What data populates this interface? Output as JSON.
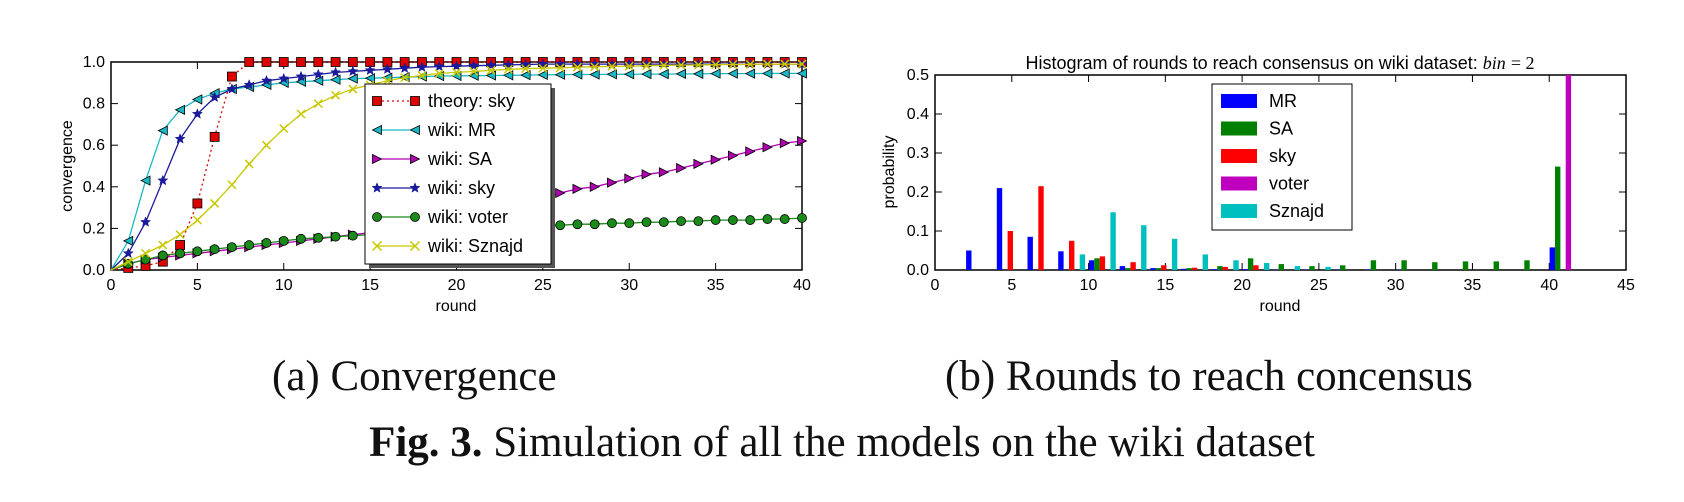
{
  "chart_data": [
    {
      "type": "line",
      "xlabel": "round",
      "ylabel": "convergence",
      "xlim": [
        0,
        40
      ],
      "ylim": [
        0,
        1.0
      ],
      "xticks": [
        "0",
        "5",
        "10",
        "15",
        "20",
        "25",
        "30",
        "35",
        "40"
      ],
      "yticks": [
        "0.0",
        "0.2",
        "0.4",
        "0.6",
        "0.8",
        "1.0"
      ],
      "legend_position": "center",
      "series": [
        {
          "name": "theory: sky",
          "color": "#dd0000",
          "marker": "square",
          "linestyle": "dotted",
          "x": [
            0,
            1,
            2,
            3,
            4,
            5,
            6,
            7,
            8,
            9,
            10,
            11,
            12,
            13,
            14,
            15,
            16,
            17,
            18,
            19,
            20,
            21,
            22,
            23,
            24,
            25,
            26,
            27,
            28,
            29,
            30,
            31,
            32,
            33,
            34,
            35,
            36,
            37,
            38,
            39,
            40
          ],
          "y": [
            0,
            0.01,
            0.02,
            0.04,
            0.12,
            0.32,
            0.64,
            0.93,
            1,
            1,
            1,
            1,
            1,
            1,
            1,
            1,
            1,
            1,
            1,
            1,
            1,
            1,
            1,
            1,
            1,
            1,
            1,
            1,
            1,
            1,
            1,
            1,
            1,
            1,
            1,
            1,
            1,
            1,
            1,
            1,
            1
          ]
        },
        {
          "name": "wiki: MR",
          "color": "#1ab8c4",
          "marker": "triangle-left",
          "linestyle": "solid",
          "x": [
            0,
            1,
            2,
            3,
            4,
            5,
            6,
            7,
            8,
            9,
            10,
            11,
            12,
            13,
            14,
            15,
            16,
            17,
            18,
            19,
            20,
            21,
            22,
            23,
            24,
            25,
            26,
            27,
            28,
            29,
            30,
            31,
            32,
            33,
            34,
            35,
            36,
            37,
            38,
            39,
            40
          ],
          "y": [
            0,
            0.14,
            0.43,
            0.67,
            0.77,
            0.82,
            0.85,
            0.87,
            0.88,
            0.89,
            0.9,
            0.905,
            0.91,
            0.915,
            0.92,
            0.922,
            0.925,
            0.927,
            0.93,
            0.932,
            0.933,
            0.934,
            0.935,
            0.936,
            0.937,
            0.938,
            0.939,
            0.94,
            0.94,
            0.941,
            0.941,
            0.942,
            0.942,
            0.943,
            0.943,
            0.944,
            0.944,
            0.944,
            0.945,
            0.945,
            0.945
          ]
        },
        {
          "name": "wiki: SA",
          "color": "#b000b0",
          "marker": "triangle-right",
          "linestyle": "solid",
          "x": [
            0,
            1,
            2,
            3,
            4,
            5,
            6,
            7,
            8,
            9,
            10,
            11,
            12,
            13,
            14,
            15,
            16,
            17,
            18,
            19,
            20,
            21,
            22,
            23,
            24,
            25,
            26,
            27,
            28,
            29,
            30,
            31,
            32,
            33,
            34,
            35,
            36,
            37,
            38,
            39,
            40
          ],
          "y": [
            0,
            0.03,
            0.05,
            0.06,
            0.07,
            0.08,
            0.09,
            0.1,
            0.11,
            0.12,
            0.13,
            0.14,
            0.15,
            0.16,
            0.17,
            0.18,
            0.19,
            0.2,
            0.22,
            0.24,
            0.26,
            0.28,
            0.3,
            0.32,
            0.33,
            0.35,
            0.37,
            0.39,
            0.4,
            0.42,
            0.44,
            0.46,
            0.47,
            0.49,
            0.51,
            0.53,
            0.55,
            0.57,
            0.59,
            0.61,
            0.62
          ]
        },
        {
          "name": "wiki: sky",
          "color": "#1a1a9a",
          "marker": "star",
          "linestyle": "solid",
          "x": [
            0,
            1,
            2,
            3,
            4,
            5,
            6,
            7,
            8,
            9,
            10,
            11,
            12,
            13,
            14,
            15,
            16,
            17,
            18,
            19,
            20,
            21,
            22,
            23,
            24,
            25,
            26,
            27,
            28,
            29,
            30,
            31,
            32,
            33,
            34,
            35,
            36,
            37,
            38,
            39,
            40
          ],
          "y": [
            0,
            0.08,
            0.23,
            0.43,
            0.63,
            0.75,
            0.83,
            0.87,
            0.89,
            0.91,
            0.92,
            0.93,
            0.94,
            0.95,
            0.955,
            0.96,
            0.965,
            0.97,
            0.975,
            0.978,
            0.98,
            0.982,
            0.984,
            0.986,
            0.988,
            0.99,
            0.99,
            0.99,
            0.99,
            0.99,
            0.99,
            0.99,
            0.99,
            0.99,
            0.99,
            0.99,
            0.99,
            0.99,
            0.99,
            0.99,
            0.99
          ]
        },
        {
          "name": "wiki: voter",
          "color": "#1a8a1a",
          "marker": "circle",
          "linestyle": "solid",
          "x": [
            0,
            1,
            2,
            3,
            4,
            5,
            6,
            7,
            8,
            9,
            10,
            11,
            12,
            13,
            14,
            15,
            16,
            17,
            18,
            19,
            20,
            21,
            22,
            23,
            24,
            25,
            26,
            27,
            28,
            29,
            30,
            31,
            32,
            33,
            34,
            35,
            36,
            37,
            38,
            39,
            40
          ],
          "y": [
            0,
            0.03,
            0.05,
            0.07,
            0.08,
            0.09,
            0.1,
            0.11,
            0.12,
            0.13,
            0.14,
            0.15,
            0.155,
            0.16,
            0.165,
            0.17,
            0.175,
            0.18,
            0.185,
            0.19,
            0.195,
            0.2,
            0.205,
            0.21,
            0.21,
            0.215,
            0.215,
            0.22,
            0.22,
            0.225,
            0.225,
            0.23,
            0.23,
            0.235,
            0.235,
            0.24,
            0.24,
            0.24,
            0.245,
            0.245,
            0.25
          ]
        },
        {
          "name": "wiki: Sznajd",
          "color": "#c8c800",
          "marker": "x",
          "linestyle": "solid",
          "x": [
            0,
            1,
            2,
            3,
            4,
            5,
            6,
            7,
            8,
            9,
            10,
            11,
            12,
            13,
            14,
            15,
            16,
            17,
            18,
            19,
            20,
            21,
            22,
            23,
            24,
            25,
            26,
            27,
            28,
            29,
            30,
            31,
            32,
            33,
            34,
            35,
            36,
            37,
            38,
            39,
            40
          ],
          "y": [
            0,
            0.04,
            0.08,
            0.12,
            0.17,
            0.24,
            0.32,
            0.41,
            0.51,
            0.6,
            0.68,
            0.75,
            0.8,
            0.84,
            0.87,
            0.89,
            0.91,
            0.925,
            0.935,
            0.945,
            0.95,
            0.955,
            0.96,
            0.965,
            0.968,
            0.97,
            0.972,
            0.975,
            0.977,
            0.979,
            0.98,
            0.982,
            0.984,
            0.985,
            0.986,
            0.987,
            0.988,
            0.989,
            0.99,
            0.99,
            0.99
          ]
        }
      ]
    },
    {
      "type": "bar",
      "title": "Histogram of rounds to reach consensus on wiki dataset:",
      "title_math": "bin",
      "title_math_tail": " = 2",
      "xlabel": "round",
      "ylabel": "probability",
      "xlim": [
        0,
        45
      ],
      "ylim": [
        0,
        0.5
      ],
      "xticks": [
        "0",
        "5",
        "10",
        "15",
        "20",
        "25",
        "30",
        "35",
        "40",
        "45"
      ],
      "yticks": [
        "0.0",
        "0.1",
        "0.2",
        "0.3",
        "0.4",
        "0.5"
      ],
      "bar_width": 0.35,
      "legend_position": "upper center",
      "series": [
        {
          "name": "MR",
          "color": "#0000ff",
          "x": [
            2.2,
            4.2,
            6.2,
            8.2,
            10.2,
            12.2,
            14.2,
            16.2,
            18.2,
            20.2,
            22.2,
            24.2,
            26.2,
            28.2,
            30.2,
            40.2
          ],
          "y": [
            0.05,
            0.21,
            0.085,
            0.048,
            0.025,
            0.01,
            0.005,
            0.003,
            0.002,
            0.002,
            0.001,
            0.001,
            0.001,
            0.001,
            0.001,
            0.058
          ]
        },
        {
          "name": "SA",
          "color": "#008000",
          "x": [
            10.55,
            12.55,
            14.55,
            16.55,
            18.55,
            20.55,
            22.55,
            24.55,
            26.55,
            28.55,
            30.55,
            32.55,
            34.55,
            36.55,
            38.55,
            40.55
          ],
          "y": [
            0.03,
            0.005,
            0.005,
            0.005,
            0.01,
            0.03,
            0.015,
            0.01,
            0.012,
            0.025,
            0.025,
            0.02,
            0.022,
            0.022,
            0.025,
            0.265
          ]
        },
        {
          "name": "sky",
          "color": "#ff0000",
          "x": [
            4.9,
            6.9,
            8.9,
            10.9,
            12.9,
            14.9,
            16.9,
            18.9,
            20.9
          ],
          "y": [
            0.1,
            0.215,
            0.075,
            0.035,
            0.02,
            0.012,
            0.006,
            0.008,
            0.012
          ]
        },
        {
          "name": "voter",
          "color": "#bf00bf",
          "x": [
            41.25
          ],
          "y": [
            0.5
          ]
        },
        {
          "name": "Sznajd",
          "color": "#00bfbf",
          "x": [
            9.6,
            11.6,
            13.6,
            15.6,
            17.6,
            19.6,
            21.6,
            23.6,
            25.6
          ],
          "y": [
            0.04,
            0.148,
            0.115,
            0.08,
            0.04,
            0.025,
            0.018,
            0.01,
            0.008
          ]
        }
      ]
    }
  ],
  "captions": {
    "sub_a": "(a) Convergence",
    "sub_b": "(b) Rounds to reach concensus",
    "fig_label": "Fig. 3.",
    "fig_text": " Simulation of all the models on the wiki dataset"
  }
}
